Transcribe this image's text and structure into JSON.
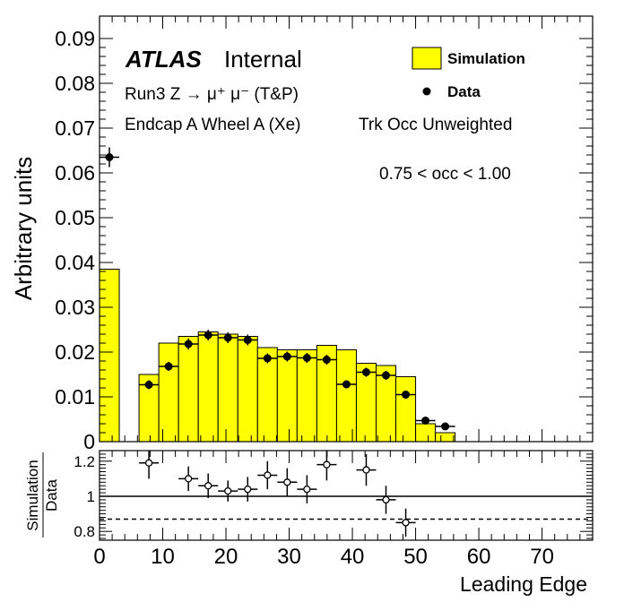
{
  "chart_data": [
    {
      "type": "bar",
      "panel": "main",
      "ylabel": "Arbitrary units",
      "ylim": [
        0,
        0.095
      ],
      "xlim": [
        0,
        78
      ],
      "yticks": [
        "0",
        "0.01",
        "0.02",
        "0.03",
        "0.04",
        "0.05",
        "0.06",
        "0.07",
        "0.08",
        "0.09"
      ],
      "annotations": {
        "atlas": "ATLAS",
        "internal": "Internal",
        "line1": "Run3 Z → μ⁺ μ⁻ (T&P)",
        "line2": "Endcap A Wheel A (Xe)",
        "line3": "Trk Occ Unweighted",
        "occ": "0.75 < occ < 1.00"
      },
      "legend": {
        "placement": "top-right",
        "simulation": "Simulation",
        "data": "Data"
      },
      "simulation_color": "#ffff00",
      "bin_edges": [
        0,
        3.125,
        6.25,
        9.375,
        12.5,
        15.625,
        18.75,
        21.875,
        25,
        28.125,
        31.25,
        34.375,
        37.5,
        40.625,
        43.75,
        46.875,
        50,
        53.125,
        56.25
      ],
      "simulation": [
        0.0385,
        0,
        0.015,
        0.022,
        0.0235,
        0.0245,
        0.024,
        0.0235,
        0.021,
        0.0205,
        0.0205,
        0.0215,
        0.0205,
        0.0175,
        0.017,
        0.0145,
        0.004,
        0.002
      ],
      "data": [
        {
          "x": 1.5625,
          "y": 0.0635,
          "yerr": 0.0022
        },
        {
          "x": 7.8125,
          "y": 0.0127,
          "yerr": 0.001
        },
        {
          "x": 10.9375,
          "y": 0.0168,
          "yerr": 0.001
        },
        {
          "x": 14.0625,
          "y": 0.0218,
          "yerr": 0.0012
        },
        {
          "x": 17.1875,
          "y": 0.0238,
          "yerr": 0.0012
        },
        {
          "x": 20.3125,
          "y": 0.0232,
          "yerr": 0.0012
        },
        {
          "x": 23.4375,
          "y": 0.0227,
          "yerr": 0.0012
        },
        {
          "x": 26.5625,
          "y": 0.0186,
          "yerr": 0.0011
        },
        {
          "x": 29.6875,
          "y": 0.019,
          "yerr": 0.0011
        },
        {
          "x": 32.8125,
          "y": 0.0187,
          "yerr": 0.0011
        },
        {
          "x": 35.9375,
          "y": 0.0183,
          "yerr": 0.0011
        },
        {
          "x": 39.0625,
          "y": 0.0128,
          "yerr": 0.0009
        },
        {
          "x": 42.1875,
          "y": 0.0155,
          "yerr": 0.001
        },
        {
          "x": 45.3125,
          "y": 0.0148,
          "yerr": 0.001
        },
        {
          "x": 48.4375,
          "y": 0.0105,
          "yerr": 0.0009
        },
        {
          "x": 51.5625,
          "y": 0.0047,
          "yerr": 0.0006
        },
        {
          "x": 54.6875,
          "y": 0.0034,
          "yerr": 0.0005
        }
      ]
    },
    {
      "type": "scatter",
      "panel": "ratio",
      "ylabel_top": "Simulation",
      "ylabel_bottom": "Data",
      "xlabel": "Leading Edge",
      "ylim": [
        0.75,
        1.26
      ],
      "yticks": [
        "0.8",
        "1",
        "1.2"
      ],
      "xticks": [
        "0",
        "10",
        "20",
        "30",
        "40",
        "50",
        "60",
        "70"
      ],
      "reference_line": 1.0,
      "dashed_line": 0.87,
      "points": [
        {
          "x": 7.8125,
          "y": 1.19,
          "yerr": 0.09
        },
        {
          "x": 14.0625,
          "y": 1.1,
          "yerr": 0.07
        },
        {
          "x": 17.1875,
          "y": 1.06,
          "yerr": 0.07
        },
        {
          "x": 20.3125,
          "y": 1.03,
          "yerr": 0.06
        },
        {
          "x": 23.4375,
          "y": 1.04,
          "yerr": 0.07
        },
        {
          "x": 26.5625,
          "y": 1.12,
          "yerr": 0.08
        },
        {
          "x": 29.6875,
          "y": 1.08,
          "yerr": 0.08
        },
        {
          "x": 32.8125,
          "y": 1.04,
          "yerr": 0.08
        },
        {
          "x": 35.9375,
          "y": 1.18,
          "yerr": 0.09
        },
        {
          "x": 42.1875,
          "y": 1.15,
          "yerr": 0.09
        },
        {
          "x": 45.3125,
          "y": 0.98,
          "yerr": 0.08
        },
        {
          "x": 48.4375,
          "y": 0.85,
          "yerr": 0.08
        }
      ]
    }
  ]
}
